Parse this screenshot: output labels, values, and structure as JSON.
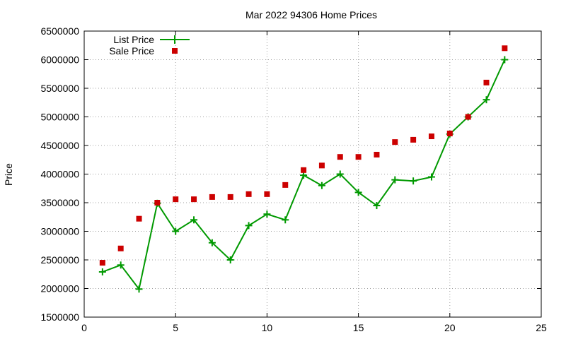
{
  "chart_data": {
    "type": "line",
    "title": "Mar 2022 94306 Home Prices",
    "xlabel": "",
    "ylabel": "Price",
    "xlim": [
      0,
      25
    ],
    "ylim": [
      1500000,
      6500000
    ],
    "grid": true,
    "legend_position": "top-left",
    "x_ticks": [
      "0",
      "5",
      "10",
      "15",
      "20",
      "25"
    ],
    "y_ticks": [
      "1500000",
      "2000000",
      "2500000",
      "3000000",
      "3500000",
      "4000000",
      "4500000",
      "5000000",
      "5500000",
      "6000000",
      "6500000"
    ],
    "series": [
      {
        "name": "List Price",
        "style": "line-with-plus-markers",
        "color": "#009900",
        "points": [
          [
            1,
            2290000
          ],
          [
            2,
            2410000
          ],
          [
            3,
            1990000
          ],
          [
            4,
            3490000
          ],
          [
            5,
            3000000
          ],
          [
            6,
            3200000
          ],
          [
            7,
            2800000
          ],
          [
            8,
            2500000
          ],
          [
            9,
            3100000
          ],
          [
            10,
            3300000
          ],
          [
            11,
            3200000
          ],
          [
            12,
            3980000
          ],
          [
            13,
            3800000
          ],
          [
            14,
            4000000
          ],
          [
            15,
            3680000
          ],
          [
            16,
            3450000
          ],
          [
            17,
            3900000
          ],
          [
            18,
            3880000
          ],
          [
            19,
            3950000
          ],
          [
            20,
            4700000
          ],
          [
            21,
            5000000
          ],
          [
            22,
            5300000
          ],
          [
            23,
            6000000
          ]
        ]
      },
      {
        "name": "Sale Price",
        "style": "square-markers",
        "color": "#cc0000",
        "points": [
          [
            1,
            2450000
          ],
          [
            2,
            2700000
          ],
          [
            3,
            3220000
          ],
          [
            4,
            3500000
          ],
          [
            5,
            3560000
          ],
          [
            6,
            3560000
          ],
          [
            7,
            3600000
          ],
          [
            8,
            3600000
          ],
          [
            9,
            3650000
          ],
          [
            10,
            3650000
          ],
          [
            11,
            3810000
          ],
          [
            12,
            4070000
          ],
          [
            13,
            4150000
          ],
          [
            14,
            4300000
          ],
          [
            15,
            4300000
          ],
          [
            16,
            4340000
          ],
          [
            17,
            4560000
          ],
          [
            18,
            4600000
          ],
          [
            19,
            4660000
          ],
          [
            20,
            4710000
          ],
          [
            21,
            5000000
          ],
          [
            22,
            5600000
          ],
          [
            23,
            6200000
          ]
        ]
      }
    ]
  }
}
